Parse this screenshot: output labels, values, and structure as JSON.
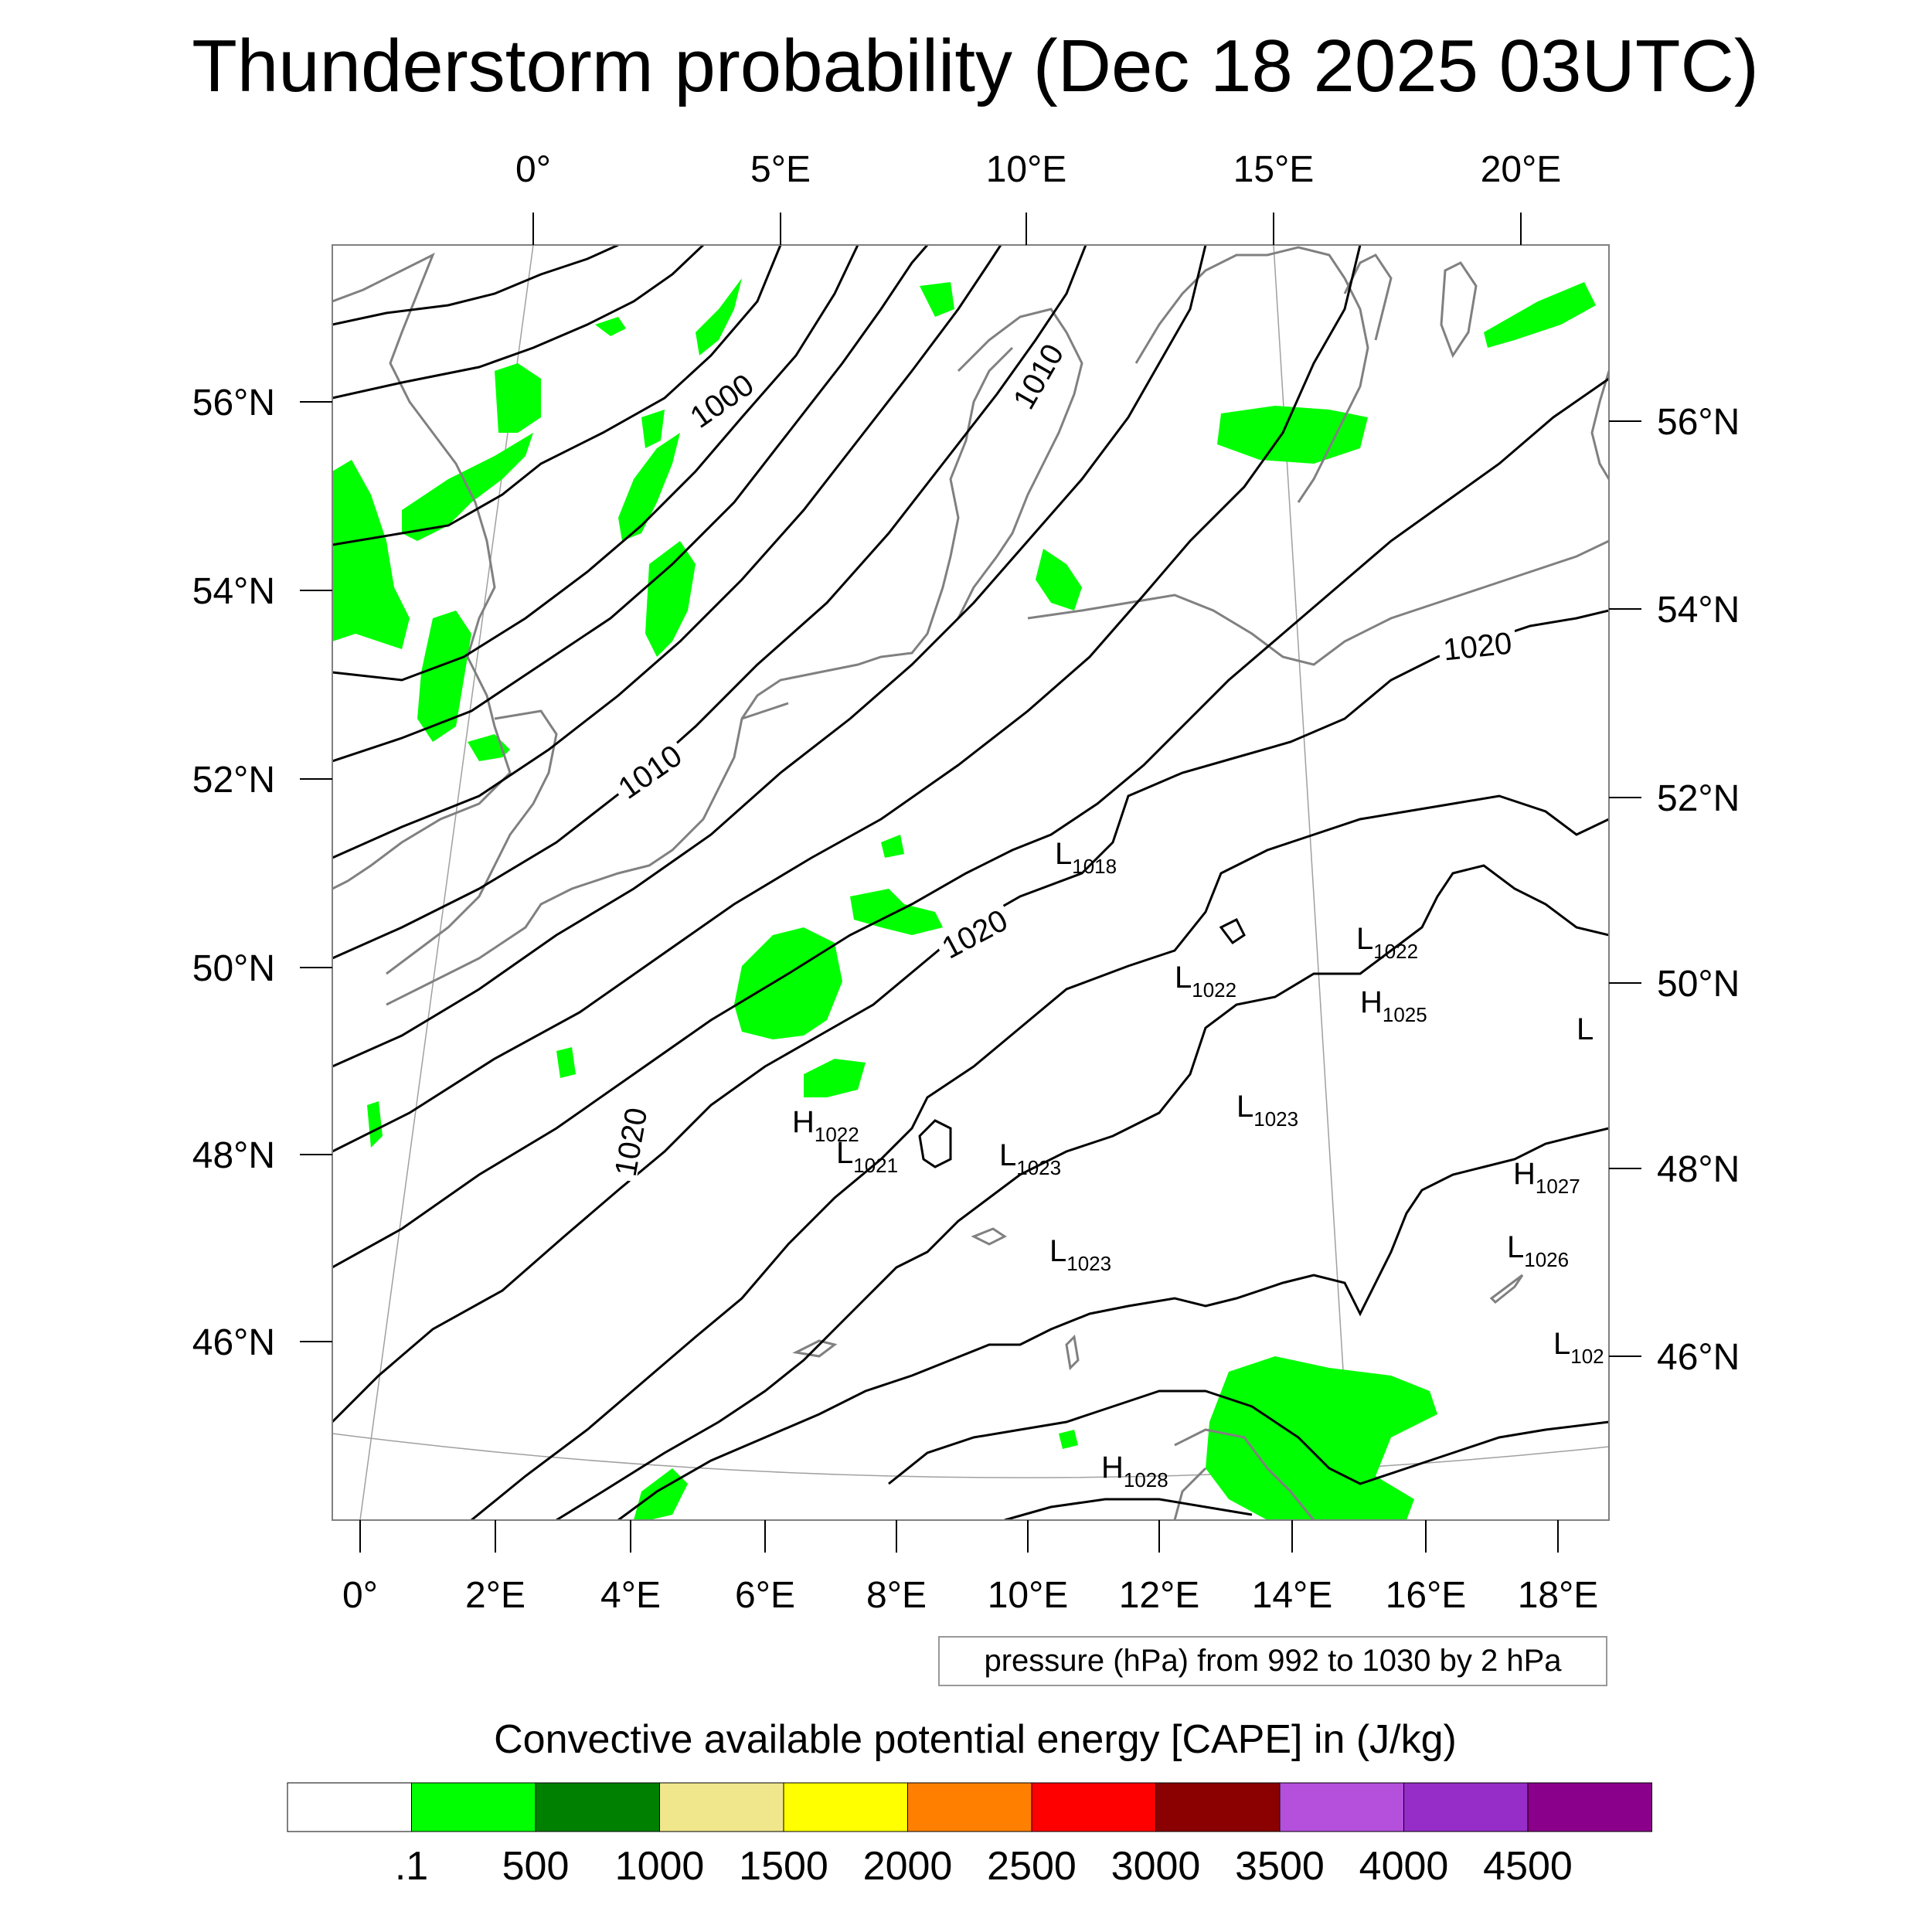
{
  "title": "Thunderstorm probability (Dec 18 2025 03UTC)",
  "chart_data": {
    "type": "map",
    "map": {
      "lon_range": [
        -0.5,
        18.8
      ],
      "lat_range": [
        44.3,
        57.6
      ],
      "top_lon_ticks": [
        "0°",
        "5°E",
        "10°E",
        "15°E",
        "20°E"
      ],
      "bottom_lon_ticks": [
        "0°",
        "2°E",
        "4°E",
        "6°E",
        "8°E",
        "10°E",
        "12°E",
        "14°E",
        "16°E",
        "18°E"
      ],
      "left_lat_ticks": [
        "56°N",
        "54°N",
        "52°N",
        "50°N",
        "48°N",
        "46°N"
      ],
      "right_lat_ticks": [
        "56°N",
        "54°N",
        "52°N",
        "50°N",
        "48°N",
        "46°N"
      ]
    },
    "isobar_labels": [
      {
        "text": "1000"
      },
      {
        "text": "1010"
      },
      {
        "text": "1010"
      },
      {
        "text": "1020"
      },
      {
        "text": "1020"
      },
      {
        "text": "1020"
      }
    ],
    "pressure_centers": [
      {
        "type": "L",
        "value": "1018"
      },
      {
        "type": "L",
        "value": "1022"
      },
      {
        "type": "L",
        "value": "1022"
      },
      {
        "type": "H",
        "value": "1025"
      },
      {
        "type": "L",
        "value": ""
      },
      {
        "type": "L",
        "value": "1023"
      },
      {
        "type": "H",
        "value": "1022"
      },
      {
        "type": "L",
        "value": "1021"
      },
      {
        "type": "L",
        "value": "1023"
      },
      {
        "type": "H",
        "value": "1027"
      },
      {
        "type": "L",
        "value": "1023"
      },
      {
        "type": "L",
        "value": "1026"
      },
      {
        "type": "L",
        "value": "102"
      },
      {
        "type": "H",
        "value": "1028"
      }
    ],
    "contour_note": "pressure (hPa) from 992 to 1030 by 2 hPa",
    "colorbar": {
      "title": "Convective available potential energy [CAPE] in (J/kg)",
      "labels": [
        ".1",
        "500",
        "1000",
        "1500",
        "2000",
        "2500",
        "3000",
        "3500",
        "4000",
        "4500"
      ],
      "colors": [
        "#ffffff",
        "#00ff00",
        "#008000",
        "#f0e68c",
        "#ffff00",
        "#ff8000",
        "#ff0000",
        "#8b0000",
        "#b450dc",
        "#962dc8",
        "#8b008b"
      ]
    },
    "colors": {
      "cape_low": "#00ff00",
      "coastline": "#808080",
      "isobar": "#000000",
      "graticule": "#a0a0a0"
    }
  }
}
